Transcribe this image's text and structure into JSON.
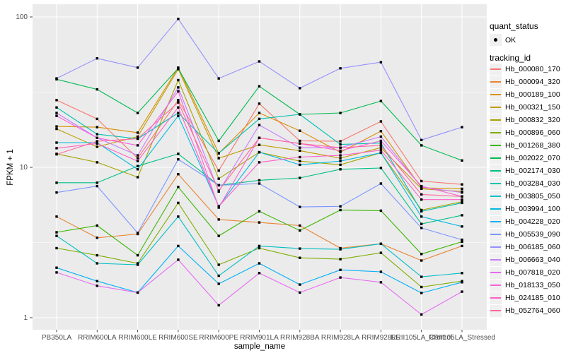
{
  "legend": {
    "quant_status_title": "quant_status",
    "ok_label": "OK",
    "tracking_id_title": "tracking_id"
  },
  "chart_data": {
    "type": "line",
    "title": "",
    "xlabel": "sample_name",
    "ylabel": "FPKM + 1",
    "y_scale": "log10",
    "y_ticks": [
      1,
      10,
      100
    ],
    "y_range": [
      0.84,
      119
    ],
    "grid": true,
    "legend_position": "right",
    "panel_bg": "#EBEBEB",
    "grid_color": "#FFFFFF",
    "point_color": "#000000",
    "axis_text_color": "#4D4D4D",
    "categories": [
      "PB350LA",
      "RRIM600LA",
      "RRIM600LE",
      "RRIM600SE",
      "RRIM600PE",
      "RRIM901LA",
      "RRIM928BA",
      "RRIM928LA",
      "RRIM928LE",
      "RRII105LA_Control",
      "RRII105LA_Stressed"
    ],
    "quant_status": "OK",
    "series": [
      {
        "name": "Hb_000080_170",
        "color": "#F8766D",
        "values": [
          28,
          21,
          11.5,
          28,
          9.5,
          26.5,
          15,
          14.9,
          20.2,
          8.1,
          7.7
        ]
      },
      {
        "name": "Hb_000094_320",
        "color": "#EA8331",
        "values": [
          4.7,
          3.4,
          3.6,
          9.0,
          4.5,
          4.3,
          4.1,
          2.9,
          3.1,
          2.4,
          3.0
        ]
      },
      {
        "name": "Hb_000189_100",
        "color": "#D89000",
        "values": [
          18.7,
          18.5,
          17,
          46,
          12.4,
          23,
          17.5,
          12.6,
          17.4,
          7.3,
          7.2
        ]
      },
      {
        "name": "Hb_000321_150",
        "color": "#C09B00",
        "values": [
          18,
          13.7,
          16,
          45,
          11.5,
          14.1,
          12.9,
          11.5,
          13.5,
          7.2,
          6.9
        ]
      },
      {
        "name": "Hb_000832_320",
        "color": "#A3A500",
        "values": [
          12.3,
          10.8,
          8.6,
          38,
          8.4,
          12.6,
          11,
          10.4,
          12.5,
          5.2,
          5.9
        ]
      },
      {
        "name": "Hb_000896_060",
        "color": "#7CAE00",
        "values": [
          2.9,
          2.6,
          2.3,
          5.8,
          2.25,
          2.9,
          2.5,
          2.45,
          2.7,
          1.6,
          1.75
        ]
      },
      {
        "name": "Hb_001268_380",
        "color": "#39B600",
        "values": [
          3.7,
          4.1,
          2.6,
          7.4,
          3.5,
          5.1,
          3.8,
          5.2,
          5.15,
          2.65,
          3.2
        ]
      },
      {
        "name": "Hb_002022_070",
        "color": "#00BB4E",
        "values": [
          38.5,
          33,
          23,
          45.5,
          15,
          34.6,
          22.5,
          23,
          27.6,
          14,
          11.1
        ]
      },
      {
        "name": "Hb_002174_030",
        "color": "#00C087",
        "values": [
          7.9,
          7.9,
          10.2,
          12.3,
          7.6,
          8.2,
          8.5,
          9.7,
          9.9,
          4.2,
          4.8
        ]
      },
      {
        "name": "Hb_003284_030",
        "color": "#00C0B2",
        "values": [
          25,
          16.6,
          15.5,
          23,
          12.4,
          21,
          22.5,
          14.2,
          14.5,
          5.1,
          5.8
        ]
      },
      {
        "name": "Hb_003805_050",
        "color": "#00BFC4",
        "values": [
          3.5,
          2.3,
          2.25,
          4.7,
          1.9,
          3.0,
          2.88,
          2.85,
          3.1,
          1.87,
          1.98
        ]
      },
      {
        "name": "Hb_003994_100",
        "color": "#00BAE0",
        "values": [
          14.6,
          14.6,
          9.7,
          22,
          5.5,
          12.6,
          10.4,
          11,
          12.5,
          4.7,
          4.04
        ]
      },
      {
        "name": "Hb_004228_020",
        "color": "#00B0F6",
        "values": [
          2.15,
          1.75,
          1.47,
          3.0,
          1.68,
          2.3,
          1.66,
          2.08,
          2.02,
          1.46,
          1.72
        ]
      },
      {
        "name": "Hb_005539_090",
        "color": "#7C96FF",
        "values": [
          6.8,
          7.5,
          3.66,
          11.3,
          7.6,
          7.8,
          5.45,
          5.5,
          7.8,
          3.95,
          3.3
        ]
      },
      {
        "name": "Hb_006185_060",
        "color": "#9590FF",
        "values": [
          39,
          53,
          46,
          97,
          39,
          50.6,
          33.6,
          45.5,
          50,
          15.2,
          18.5
        ]
      },
      {
        "name": "Hb_006663_040",
        "color": "#C77CFF",
        "values": [
          23,
          15.7,
          12,
          34,
          6.9,
          19.1,
          13.5,
          13.5,
          16,
          7.4,
          6.8
        ]
      },
      {
        "name": "Hb_007818_020",
        "color": "#E76BF3",
        "values": [
          2.0,
          1.63,
          1.47,
          2.43,
          1.21,
          1.98,
          1.47,
          1.85,
          1.72,
          1.05,
          1.49
        ]
      },
      {
        "name": "Hb_018133_050",
        "color": "#FA62DB",
        "values": [
          22,
          15.7,
          14,
          32,
          5.4,
          15.7,
          14.4,
          12.9,
          15,
          7.5,
          6.4
        ]
      },
      {
        "name": "Hb_024185_010",
        "color": "#FF61C9",
        "values": [
          13.4,
          14.4,
          11,
          25,
          5.5,
          10.8,
          11.7,
          12,
          13,
          6.1,
          6.1
        ]
      },
      {
        "name": "Hb_052764_060",
        "color": "#FF689E",
        "values": [
          12.2,
          14.9,
          15.5,
          27,
          7.0,
          15.7,
          14.4,
          13.5,
          14,
          6.6,
          6.4
        ]
      }
    ]
  }
}
